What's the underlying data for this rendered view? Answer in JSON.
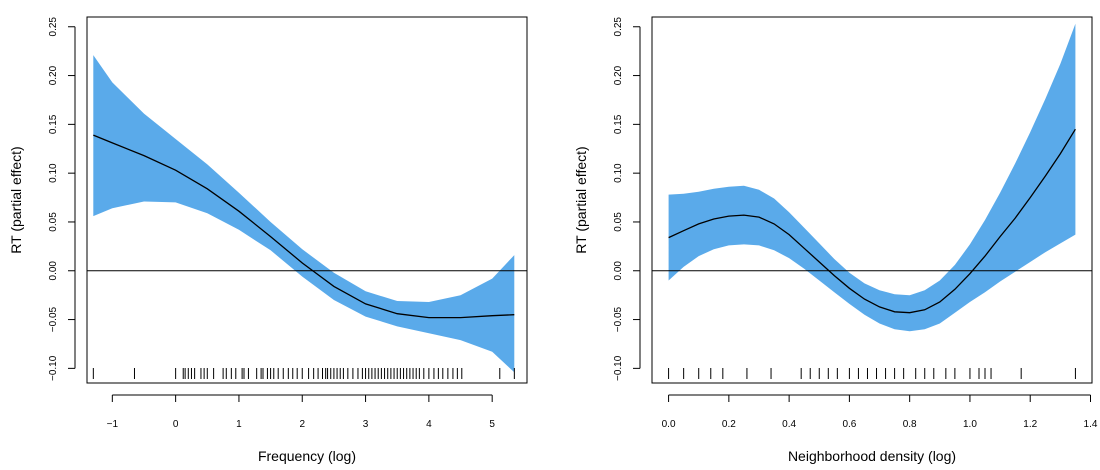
{
  "chart_data": [
    {
      "type": "line",
      "xlabel": "Frequency (log)",
      "ylabel": "RT (partial effect)",
      "xlim": [
        -1.4,
        5.55
      ],
      "ylim": [
        -0.115,
        0.26
      ],
      "xticks": [
        -1,
        0,
        1,
        2,
        3,
        4,
        5
      ],
      "xtick_labels": [
        "−1",
        "0",
        "1",
        "2",
        "3",
        "4",
        "5"
      ],
      "yticks": [
        -0.1,
        -0.05,
        0.0,
        0.05,
        0.1,
        0.15,
        0.2,
        0.25
      ],
      "ytick_labels": [
        "−0.10",
        "−0.05",
        "0.00",
        "0.05",
        "0.10",
        "0.15",
        "0.20",
        "0.25"
      ],
      "reference_line_y": 0,
      "band_color": "#5aaaea",
      "line_color": "#000000",
      "x": [
        -1.3,
        -1.0,
        -0.5,
        0.0,
        0.5,
        1.0,
        1.5,
        2.0,
        2.5,
        3.0,
        3.5,
        4.0,
        4.5,
        5.0,
        5.35
      ],
      "fit": [
        0.139,
        0.131,
        0.118,
        0.103,
        0.084,
        0.061,
        0.035,
        0.008,
        -0.016,
        -0.034,
        -0.044,
        -0.048,
        -0.048,
        -0.046,
        -0.045
      ],
      "upper": [
        0.221,
        0.193,
        0.161,
        0.135,
        0.109,
        0.08,
        0.05,
        0.022,
        -0.002,
        -0.021,
        -0.031,
        -0.032,
        -0.025,
        -0.008,
        0.016
      ],
      "lower": [
        0.056,
        0.064,
        0.071,
        0.07,
        0.059,
        0.042,
        0.021,
        -0.006,
        -0.03,
        -0.047,
        -0.057,
        -0.064,
        -0.071,
        -0.083,
        -0.104
      ],
      "rug": [
        -1.3,
        -0.65,
        0.0,
        0.12,
        0.15,
        0.2,
        0.25,
        0.3,
        0.4,
        0.45,
        0.5,
        0.6,
        0.75,
        0.8,
        0.88,
        0.95,
        1.05,
        1.08,
        1.15,
        1.28,
        1.35,
        1.38,
        1.45,
        1.5,
        1.55,
        1.62,
        1.7,
        1.78,
        1.85,
        1.92,
        2.0,
        2.1,
        2.18,
        2.25,
        2.32,
        2.37,
        2.4,
        2.45,
        2.5,
        2.55,
        2.6,
        2.65,
        2.72,
        2.8,
        2.88,
        2.95,
        3.0,
        3.05,
        3.1,
        3.15,
        3.2,
        3.25,
        3.3,
        3.35,
        3.4,
        3.45,
        3.5,
        3.55,
        3.6,
        3.65,
        3.7,
        3.75,
        3.8,
        3.85,
        3.92,
        4.0,
        4.08,
        4.15,
        4.22,
        4.3,
        4.38,
        4.45,
        4.52,
        5.12,
        5.35
      ]
    },
    {
      "type": "line",
      "xlabel": "Neighborhood density (log)",
      "ylabel": "RT (partial effect)",
      "xlim": [
        -0.055,
        1.405
      ],
      "ylim": [
        -0.115,
        0.26
      ],
      "xticks": [
        0.0,
        0.2,
        0.4,
        0.6,
        0.8,
        1.0,
        1.2,
        1.4
      ],
      "xtick_labels": [
        "0.0",
        "0.2",
        "0.4",
        "0.6",
        "0.8",
        "1.0",
        "1.2",
        "1.4"
      ],
      "yticks": [
        -0.1,
        -0.05,
        0.0,
        0.05,
        0.1,
        0.15,
        0.2,
        0.25
      ],
      "ytick_labels": [
        "−0.10",
        "−0.05",
        "0.00",
        "0.05",
        "0.10",
        "0.15",
        "0.20",
        "0.25"
      ],
      "reference_line_y": 0,
      "band_color": "#5aaaea",
      "line_color": "#000000",
      "x": [
        0.0,
        0.05,
        0.1,
        0.15,
        0.2,
        0.25,
        0.3,
        0.35,
        0.4,
        0.45,
        0.5,
        0.55,
        0.6,
        0.65,
        0.7,
        0.75,
        0.8,
        0.85,
        0.9,
        0.95,
        1.0,
        1.05,
        1.1,
        1.15,
        1.2,
        1.25,
        1.3,
        1.35
      ],
      "fit": [
        0.034,
        0.041,
        0.048,
        0.053,
        0.056,
        0.057,
        0.055,
        0.048,
        0.037,
        0.023,
        0.009,
        -0.005,
        -0.018,
        -0.029,
        -0.037,
        -0.042,
        -0.043,
        -0.04,
        -0.032,
        -0.019,
        -0.003,
        0.015,
        0.035,
        0.054,
        0.075,
        0.097,
        0.12,
        0.145
      ],
      "upper": [
        0.078,
        0.079,
        0.081,
        0.084,
        0.086,
        0.087,
        0.083,
        0.074,
        0.06,
        0.044,
        0.028,
        0.012,
        -0.002,
        -0.013,
        -0.02,
        -0.024,
        -0.025,
        -0.02,
        -0.01,
        0.006,
        0.027,
        0.052,
        0.08,
        0.11,
        0.142,
        0.176,
        0.212,
        0.253
      ],
      "lower": [
        -0.01,
        0.004,
        0.015,
        0.022,
        0.026,
        0.027,
        0.026,
        0.021,
        0.013,
        0.002,
        -0.01,
        -0.022,
        -0.034,
        -0.045,
        -0.054,
        -0.06,
        -0.062,
        -0.06,
        -0.054,
        -0.043,
        -0.032,
        -0.022,
        -0.011,
        -0.001,
        0.009,
        0.019,
        0.028,
        0.037
      ],
      "rug": [
        0.0,
        0.05,
        0.1,
        0.14,
        0.18,
        0.26,
        0.34,
        0.44,
        0.47,
        0.5,
        0.53,
        0.56,
        0.6,
        0.63,
        0.66,
        0.69,
        0.72,
        0.75,
        0.78,
        0.82,
        0.85,
        0.88,
        0.92,
        0.95,
        1.0,
        1.03,
        1.05,
        1.07,
        1.17,
        1.35
      ]
    }
  ]
}
